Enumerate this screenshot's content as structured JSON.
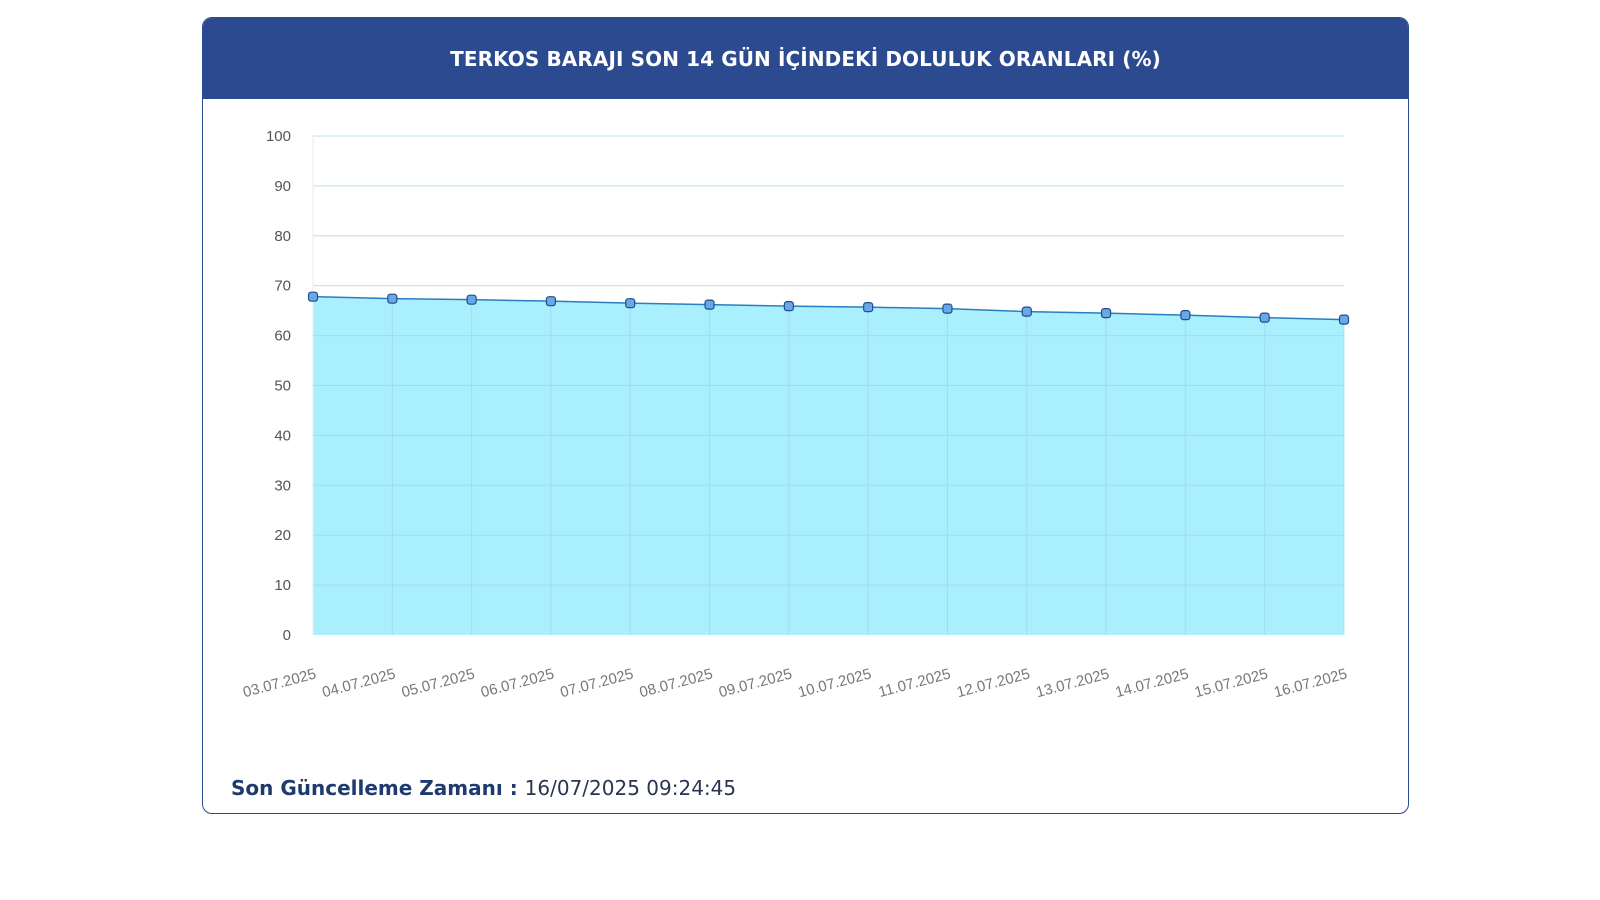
{
  "header": {
    "title": "TERKOS BARAJI SON 14 GÜN İÇİNDEKİ DOLULUK ORANLARI (%)"
  },
  "footer": {
    "label": "Son Güncelleme Zamanı : ",
    "value": "16/07/2025 09:24:45"
  },
  "colors": {
    "header_bg": "#2b4a8f",
    "area_fill": "#a9effd",
    "line": "#2a7ec0",
    "marker_fill": "#6aa7e6",
    "grid": "#9fd6ea"
  },
  "chart_data": {
    "type": "area",
    "title": "TERKOS BARAJI SON 14 GÜN İÇİNDEKİ DOLULUK ORANLARI (%)",
    "xlabel": "",
    "ylabel": "",
    "ylim": [
      0,
      100
    ],
    "yticks": [
      0,
      10,
      20,
      30,
      40,
      50,
      60,
      70,
      80,
      90,
      100
    ],
    "categories": [
      "03.07.2025",
      "04.07.2025",
      "05.07.2025",
      "06.07.2025",
      "07.07.2025",
      "08.07.2025",
      "09.07.2025",
      "10.07.2025",
      "11.07.2025",
      "12.07.2025",
      "13.07.2025",
      "14.07.2025",
      "15.07.2025",
      "16.07.2025"
    ],
    "series": [
      {
        "values": [
          67.8,
          67.4,
          67.2,
          66.9,
          66.5,
          66.2,
          65.9,
          65.7,
          65.4,
          64.8,
          64.5,
          64.1,
          63.6,
          63.2
        ]
      }
    ],
    "grid": true,
    "legend": "none"
  }
}
